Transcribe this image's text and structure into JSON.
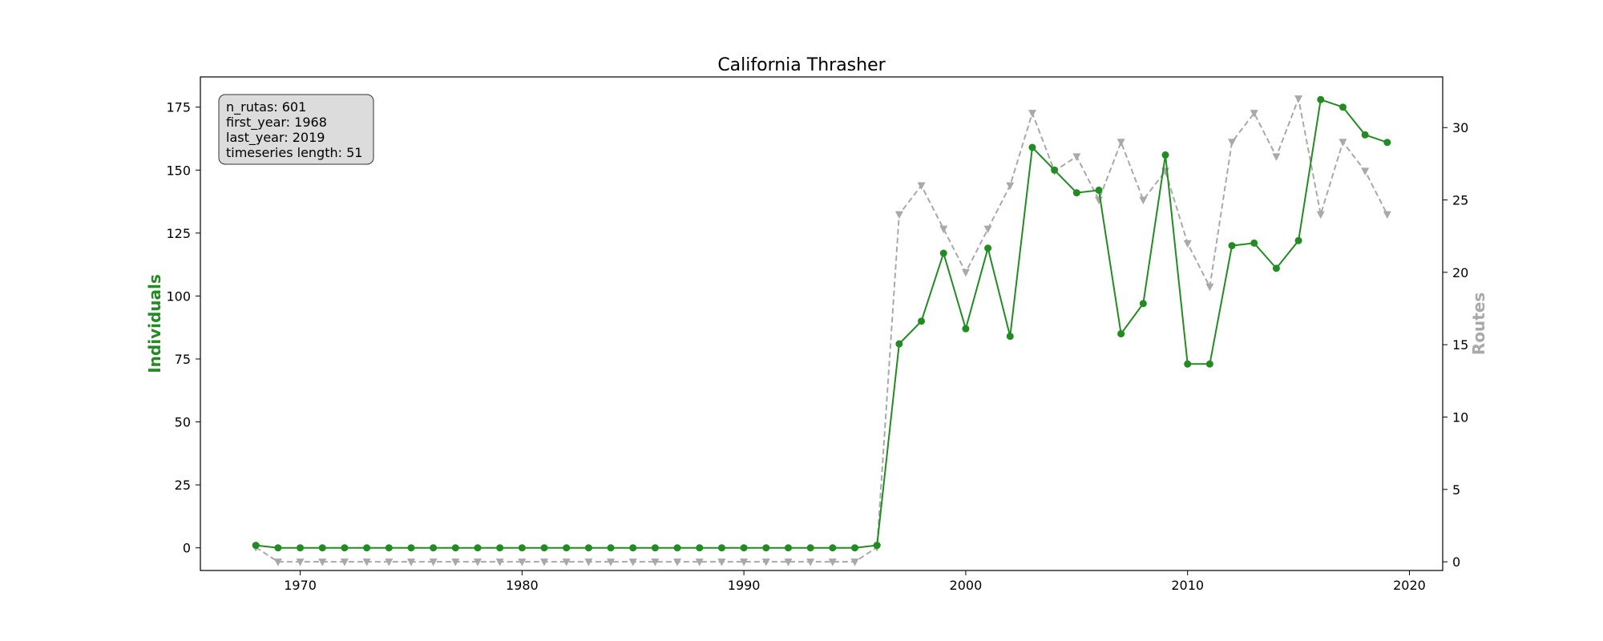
{
  "chart_data": {
    "type": "line",
    "title": "California Thrasher",
    "xlabel": "",
    "ylabel_left": "Individuals",
    "ylabel_right": "Routes",
    "xlim": [
      1965.5,
      2021.5
    ],
    "ylim_left": [
      -9,
      187
    ],
    "ylim_right": [
      -0.6,
      33.5
    ],
    "x_ticks": [
      1970,
      1980,
      1990,
      2000,
      2010,
      2020
    ],
    "y_ticks_left": [
      0,
      25,
      50,
      75,
      100,
      125,
      150,
      175
    ],
    "y_ticks_right": [
      0,
      5,
      10,
      15,
      20,
      25,
      30
    ],
    "grid": false,
    "info_box": {
      "lines": [
        "n_rutas: 601",
        "first_year: 1968",
        "last_year: 2019",
        "timeseries length: 51"
      ],
      "placement": "top-left"
    },
    "x": [
      1968,
      1969,
      1970,
      1971,
      1972,
      1973,
      1974,
      1975,
      1976,
      1977,
      1978,
      1979,
      1980,
      1981,
      1982,
      1983,
      1984,
      1985,
      1986,
      1987,
      1988,
      1989,
      1990,
      1991,
      1992,
      1993,
      1994,
      1995,
      1996,
      1997,
      1998,
      1999,
      2000,
      2001,
      2002,
      2003,
      2004,
      2005,
      2006,
      2007,
      2008,
      2009,
      2010,
      2011,
      2012,
      2013,
      2014,
      2015,
      2016,
      2017,
      2018,
      2019
    ],
    "series": [
      {
        "name": "Individuals",
        "axis": "left",
        "color": "#228b22",
        "style": "solid",
        "marker": "circle",
        "values": [
          1,
          0,
          0,
          0,
          0,
          0,
          0,
          0,
          0,
          0,
          0,
          0,
          0,
          0,
          0,
          0,
          0,
          0,
          0,
          0,
          0,
          0,
          0,
          0,
          0,
          0,
          0,
          0,
          1,
          81,
          90,
          117,
          87,
          119,
          84,
          159,
          150,
          141,
          142,
          85,
          97,
          156,
          73,
          73,
          120,
          121,
          111,
          122,
          178,
          175,
          164,
          161
        ]
      },
      {
        "name": "Routes",
        "axis": "right",
        "color": "#a9a9a9",
        "style": "dashed",
        "marker": "triangle-down",
        "values": [
          1,
          0,
          0,
          0,
          0,
          0,
          0,
          0,
          0,
          0,
          0,
          0,
          0,
          0,
          0,
          0,
          0,
          0,
          0,
          0,
          0,
          0,
          0,
          0,
          0,
          0,
          0,
          0,
          1,
          24,
          26,
          23,
          20,
          23,
          26,
          31,
          27,
          28,
          25,
          29,
          25,
          27,
          22,
          19,
          29,
          31,
          28,
          32,
          24,
          29,
          27,
          24
        ]
      }
    ]
  }
}
